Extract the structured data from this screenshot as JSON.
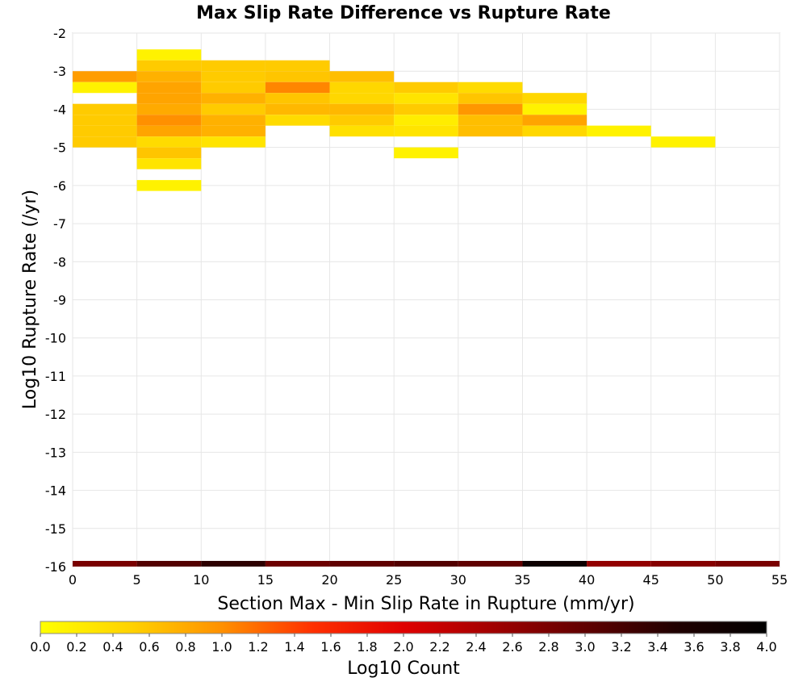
{
  "chart_data": {
    "type": "heatmap",
    "title": "Max Slip Rate Difference vs Rupture Rate",
    "xlabel": "Section Max - Min Slip Rate in Rupture (mm/yr)",
    "ylabel": "Log10 Rupture Rate (/yr)",
    "xlim": [
      0,
      55
    ],
    "ylim": [
      -16,
      -2
    ],
    "xticks": [
      "0",
      "5",
      "10",
      "15",
      "20",
      "25",
      "30",
      "35",
      "40",
      "45",
      "50",
      "55"
    ],
    "yticks": [
      "-2",
      "-3",
      "-4",
      "-5",
      "-6",
      "-7",
      "-8",
      "-9",
      "-10",
      "-11",
      "-12",
      "-13",
      "-14",
      "-15",
      "-16"
    ],
    "grid": true,
    "x_bin_width": 5,
    "y_bin_height": 0.2857,
    "cells": [
      {
        "x0": 0,
        "ymid": -3.143,
        "v": 0.9
      },
      {
        "x0": 0,
        "ymid": -3.429,
        "v": 0.15
      },
      {
        "x0": 0,
        "ymid": -4.0,
        "v": 0.55
      },
      {
        "x0": 0,
        "ymid": -4.286,
        "v": 0.55
      },
      {
        "x0": 0,
        "ymid": -4.571,
        "v": 0.55
      },
      {
        "x0": 0,
        "ymid": -4.857,
        "v": 0.55
      },
      {
        "x0": 5,
        "ymid": -2.571,
        "v": 0.15
      },
      {
        "x0": 5,
        "ymid": -2.857,
        "v": 0.55
      },
      {
        "x0": 5,
        "ymid": -3.143,
        "v": 0.75
      },
      {
        "x0": 5,
        "ymid": -3.429,
        "v": 0.85
      },
      {
        "x0": 5,
        "ymid": -3.714,
        "v": 0.85
      },
      {
        "x0": 5,
        "ymid": -4.0,
        "v": 0.8
      },
      {
        "x0": 5,
        "ymid": -4.286,
        "v": 1.0
      },
      {
        "x0": 5,
        "ymid": -4.571,
        "v": 0.85
      },
      {
        "x0": 5,
        "ymid": -4.857,
        "v": 0.4
      },
      {
        "x0": 5,
        "ymid": -5.143,
        "v": 0.6
      },
      {
        "x0": 5,
        "ymid": -5.429,
        "v": 0.3
      },
      {
        "x0": 5,
        "ymid": -6.0,
        "v": 0.15
      },
      {
        "x0": 10,
        "ymid": -2.857,
        "v": 0.55
      },
      {
        "x0": 10,
        "ymid": -3.143,
        "v": 0.55
      },
      {
        "x0": 10,
        "ymid": -3.429,
        "v": 0.55
      },
      {
        "x0": 10,
        "ymid": -3.714,
        "v": 0.75
      },
      {
        "x0": 10,
        "ymid": -4.0,
        "v": 0.55
      },
      {
        "x0": 10,
        "ymid": -4.286,
        "v": 0.75
      },
      {
        "x0": 10,
        "ymid": -4.571,
        "v": 0.75
      },
      {
        "x0": 10,
        "ymid": -4.857,
        "v": 0.3
      },
      {
        "x0": 15,
        "ymid": -2.857,
        "v": 0.55
      },
      {
        "x0": 15,
        "ymid": -3.143,
        "v": 0.6
      },
      {
        "x0": 15,
        "ymid": -3.429,
        "v": 1.05
      },
      {
        "x0": 15,
        "ymid": -3.714,
        "v": 0.6
      },
      {
        "x0": 15,
        "ymid": -4.0,
        "v": 0.7
      },
      {
        "x0": 15,
        "ymid": -4.286,
        "v": 0.4
      },
      {
        "x0": 20,
        "ymid": -3.143,
        "v": 0.65
      },
      {
        "x0": 20,
        "ymid": -3.429,
        "v": 0.45
      },
      {
        "x0": 20,
        "ymid": -3.714,
        "v": 0.45
      },
      {
        "x0": 20,
        "ymid": -4.0,
        "v": 0.7
      },
      {
        "x0": 20,
        "ymid": -4.286,
        "v": 0.55
      },
      {
        "x0": 20,
        "ymid": -4.571,
        "v": 0.35
      },
      {
        "x0": 25,
        "ymid": -3.429,
        "v": 0.55
      },
      {
        "x0": 25,
        "ymid": -3.714,
        "v": 0.3
      },
      {
        "x0": 25,
        "ymid": -4.0,
        "v": 0.55
      },
      {
        "x0": 25,
        "ymid": -4.286,
        "v": 0.2
      },
      {
        "x0": 25,
        "ymid": -4.571,
        "v": 0.3
      },
      {
        "x0": 25,
        "ymid": -5.143,
        "v": 0.15
      },
      {
        "x0": 30,
        "ymid": -3.429,
        "v": 0.4
      },
      {
        "x0": 30,
        "ymid": -3.714,
        "v": 0.6
      },
      {
        "x0": 30,
        "ymid": -4.0,
        "v": 0.95
      },
      {
        "x0": 30,
        "ymid": -4.286,
        "v": 0.65
      },
      {
        "x0": 30,
        "ymid": -4.571,
        "v": 0.65
      },
      {
        "x0": 35,
        "ymid": -3.714,
        "v": 0.45
      },
      {
        "x0": 35,
        "ymid": -4.0,
        "v": 0.15
      },
      {
        "x0": 35,
        "ymid": -4.286,
        "v": 0.85
      },
      {
        "x0": 35,
        "ymid": -4.571,
        "v": 0.45
      },
      {
        "x0": 40,
        "ymid": -4.571,
        "v": 0.15
      },
      {
        "x0": 45,
        "ymid": -4.857,
        "v": 0.15
      }
    ],
    "bottom_strip": {
      "y": -16,
      "values": [
        2.8,
        3.1,
        3.4,
        2.9,
        3.0,
        3.1,
        3.0,
        3.8,
        2.6,
        2.7,
        2.8
      ]
    },
    "colorbar": {
      "label": "Log10 Count",
      "min": 0.0,
      "max": 4.0,
      "ticks": [
        "0.0",
        "0.2",
        "0.4",
        "0.6",
        "0.8",
        "1.0",
        "1.2",
        "1.4",
        "1.6",
        "1.8",
        "2.0",
        "2.2",
        "2.4",
        "2.6",
        "2.8",
        "3.0",
        "3.2",
        "3.4",
        "3.6",
        "3.8",
        "4.0"
      ],
      "colors": [
        "#ffff00",
        "#ffd200",
        "#ff9000",
        "#ff3000",
        "#e00000",
        "#a00000",
        "#600000",
        "#200000",
        "#000000"
      ]
    }
  }
}
